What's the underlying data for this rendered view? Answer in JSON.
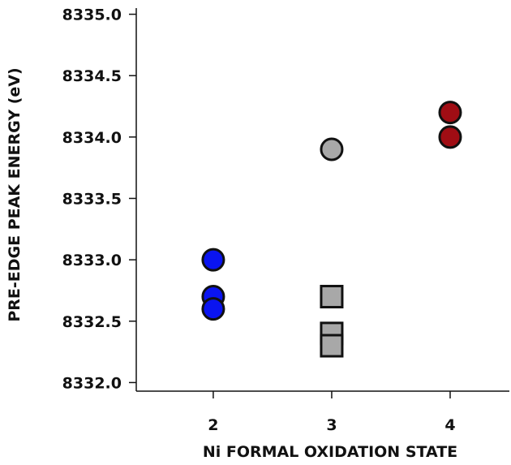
{
  "chart_data": {
    "type": "scatter",
    "title": "",
    "xlabel": "Ni FORMAL OXIDATION STATE",
    "ylabel": "PRE-EDGE PEAK ENERGY (eV)",
    "xlim": [
      1.35,
      4.5
    ],
    "ylim": [
      8331.93,
      8335.05
    ],
    "x_ticks": [
      2,
      3,
      4
    ],
    "y_ticks": [
      8332.0,
      8332.5,
      8333.0,
      8333.5,
      8334.0,
      8334.5,
      8335.0
    ],
    "y_tick_labels": [
      "8332.0",
      "8332.5",
      "8333.0",
      "8333.5",
      "8334.0",
      "8334.5",
      "8335.0"
    ],
    "x_tick_labels": [
      "2",
      "3",
      "4"
    ],
    "grid": false,
    "legend": "none",
    "series": [
      {
        "marker": "circle",
        "color": "#0a14f0",
        "points": [
          {
            "x": 2,
            "y": 8333.0
          },
          {
            "x": 2,
            "y": 8332.7
          },
          {
            "x": 2,
            "y": 8332.6
          }
        ]
      },
      {
        "marker": "circle",
        "color": "#a8a8a8",
        "points": [
          {
            "x": 3,
            "y": 8333.9
          }
        ]
      },
      {
        "marker": "square",
        "color": "#a8a8a8",
        "points": [
          {
            "x": 3,
            "y": 8332.7
          },
          {
            "x": 3,
            "y": 8332.4
          },
          {
            "x": 3,
            "y": 8332.3
          }
        ]
      },
      {
        "marker": "circle",
        "color": "#a00d14",
        "points": [
          {
            "x": 4,
            "y": 8334.2
          },
          {
            "x": 4,
            "y": 8334.0
          }
        ]
      }
    ]
  }
}
